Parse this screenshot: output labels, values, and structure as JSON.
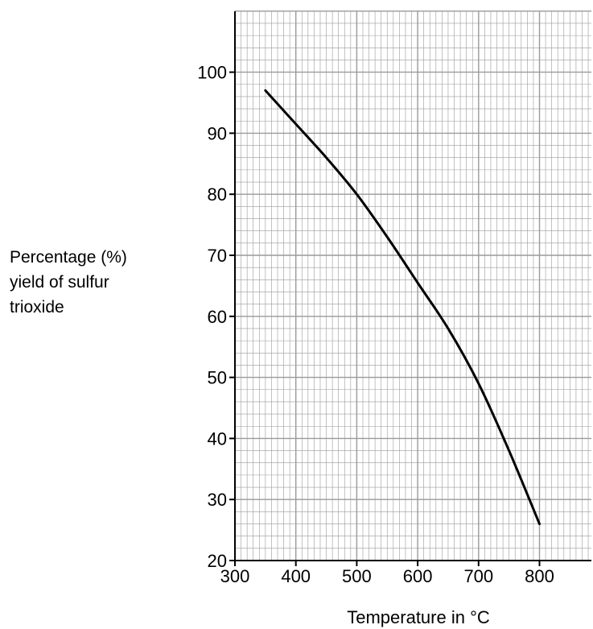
{
  "chart_data": {
    "type": "line",
    "title": "",
    "xlabel": "Temperature in °C",
    "ylabel_lines": [
      "Percentage (%)",
      "yield of sulfur",
      "trioxide"
    ],
    "xlim": [
      300,
      890
    ],
    "ylim": [
      20,
      110
    ],
    "x_ticks": [
      300,
      400,
      500,
      600,
      700,
      800
    ],
    "y_ticks": [
      20,
      30,
      40,
      50,
      60,
      70,
      80,
      90,
      100
    ],
    "x_tick_labels": [
      "300",
      "400",
      "500",
      "600",
      "700",
      "800"
    ],
    "y_tick_labels": [
      "20",
      "30",
      "40",
      "50",
      "60",
      "70",
      "80",
      "90",
      "100"
    ],
    "grid": true,
    "series": [
      {
        "x": [
          350,
          400,
          450,
          500,
          550,
          600,
          650,
          700,
          750,
          800
        ],
        "y": [
          97,
          91.5,
          86,
          80,
          73,
          65.5,
          58,
          49,
          38,
          26
        ]
      }
    ]
  },
  "colors": {
    "grid": "#9a9a9a",
    "axis": "#000000",
    "line": "#000000",
    "background": "#ffffff"
  }
}
